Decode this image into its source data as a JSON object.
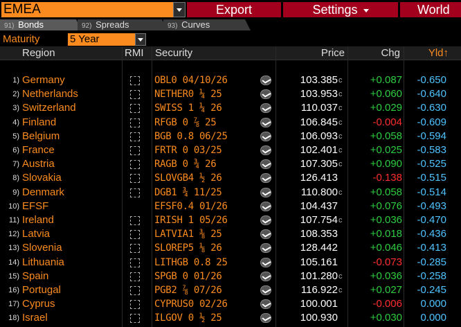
{
  "topbar": {
    "search_value": "EMEA",
    "export_label": "Export",
    "settings_label": "Settings",
    "world_label": "World"
  },
  "tabs": [
    {
      "num": "91)",
      "label": "Bonds"
    },
    {
      "num": "92)",
      "label": "Spreads"
    },
    {
      "num": "93)",
      "label": "Curves"
    }
  ],
  "maturity": {
    "label": "Maturity",
    "value": "5 Year"
  },
  "header": {
    "region": "Region",
    "rmi": "RMI",
    "security": "Security",
    "price": "Price",
    "chg": "Chg",
    "yld": "Yld↑"
  },
  "colors": {
    "accent": "#fb8b1e",
    "menu": "#a3001e",
    "positive": "#2ecc40",
    "negative": "#ff2e2e",
    "yield": "#4fc3ff"
  },
  "rows": [
    {
      "num": "1)",
      "region": "Germany",
      "rmi": true,
      "security": "OBL0 04/10/26",
      "price": "103.385",
      "src": "c",
      "chg": "+0.087",
      "chg_sign": "pos",
      "yld": "-0.650"
    },
    {
      "num": "2)",
      "region": "Netherlands",
      "rmi": true,
      "security": "NETHER0 ¼ 25",
      "price": "103.953",
      "src": "c",
      "chg": "+0.060",
      "chg_sign": "pos",
      "yld": "-0.640"
    },
    {
      "num": "3)",
      "region": "Switzerland",
      "rmi": true,
      "security": "SWISS 1 ¼ 26",
      "price": "110.037",
      "src": "c",
      "chg": "+0.029",
      "chg_sign": "pos",
      "yld": "-0.630"
    },
    {
      "num": "4)",
      "region": "Finland",
      "rmi": true,
      "security": "RFGB 0 ⅞ 25",
      "price": "106.845",
      "src": "c",
      "chg": "-0.004",
      "chg_sign": "neg",
      "yld": "-0.609"
    },
    {
      "num": "5)",
      "region": "Belgium",
      "rmi": true,
      "security": "BGB 0.8 06/25",
      "price": "106.093",
      "src": "c",
      "chg": "+0.058",
      "chg_sign": "pos",
      "yld": "-0.594"
    },
    {
      "num": "6)",
      "region": "France",
      "rmi": true,
      "security": "FRTR 0 03/25",
      "price": "102.401",
      "src": "c",
      "chg": "+0.025",
      "chg_sign": "pos",
      "yld": "-0.583"
    },
    {
      "num": "7)",
      "region": "Austria",
      "rmi": true,
      "security": "RAGB 0 ¾ 26",
      "price": "107.305",
      "src": "c",
      "chg": "+0.090",
      "chg_sign": "pos",
      "yld": "-0.525"
    },
    {
      "num": "8)",
      "region": "Slovakia",
      "rmi": true,
      "security": "SLOVGB4 ½ 26",
      "price": "126.413",
      "src": "",
      "chg": "-0.138",
      "chg_sign": "neg",
      "yld": "-0.515"
    },
    {
      "num": "9)",
      "region": "Denmark",
      "rmi": true,
      "security": "DGB1 ¾ 11/25",
      "price": "110.800",
      "src": "c",
      "chg": "+0.058",
      "chg_sign": "pos",
      "yld": "-0.514"
    },
    {
      "num": "10)",
      "region": "EFSF",
      "rmi": false,
      "security": "EFSF0.4 01/26",
      "price": "104.437",
      "src": "",
      "chg": "+0.076",
      "chg_sign": "pos",
      "yld": "-0.493"
    },
    {
      "num": "11)",
      "region": "Ireland",
      "rmi": true,
      "security": "IRISH 1 05/26",
      "price": "107.754",
      "src": "c",
      "chg": "+0.036",
      "chg_sign": "pos",
      "yld": "-0.470"
    },
    {
      "num": "12)",
      "region": "Latvia",
      "rmi": true,
      "security": "LATVIA1 ⅜ 25",
      "price": "108.353",
      "src": "",
      "chg": "+0.018",
      "chg_sign": "pos",
      "yld": "-0.436"
    },
    {
      "num": "13)",
      "region": "Slovenia",
      "rmi": true,
      "security": "SLOREP5 ⅛ 26",
      "price": "128.442",
      "src": "",
      "chg": "+0.046",
      "chg_sign": "pos",
      "yld": "-0.413"
    },
    {
      "num": "14)",
      "region": "Lithuania",
      "rmi": true,
      "security": "LITHGB 0.8 25",
      "price": "105.161",
      "src": "",
      "chg": "-0.073",
      "chg_sign": "neg",
      "yld": "-0.285"
    },
    {
      "num": "15)",
      "region": "Spain",
      "rmi": true,
      "security": "SPGB 0 01/26",
      "price": "101.280",
      "src": "c",
      "chg": "+0.036",
      "chg_sign": "pos",
      "yld": "-0.258"
    },
    {
      "num": "16)",
      "region": "Portugal",
      "rmi": true,
      "security": "PGB2 ⅞ 07/26",
      "price": "116.922",
      "src": "c",
      "chg": "+0.027",
      "chg_sign": "pos",
      "yld": "-0.245"
    },
    {
      "num": "17)",
      "region": "Cyprus",
      "rmi": true,
      "security": "CYPRUS0 02/26",
      "price": "100.001",
      "src": "",
      "chg": "-0.006",
      "chg_sign": "neg",
      "yld": "0.000"
    },
    {
      "num": "18)",
      "region": "Israel",
      "rmi": true,
      "security": "ILGOV 0 ½ 25",
      "price": "100.930",
      "src": "",
      "chg": "+0.030",
      "chg_sign": "pos",
      "yld": "0.000"
    }
  ]
}
